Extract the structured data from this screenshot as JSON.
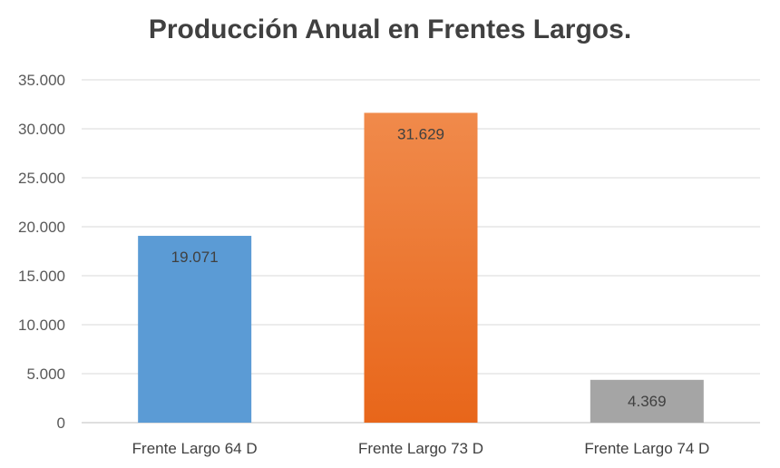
{
  "chart_data": {
    "type": "bar",
    "title": "Producción Anual en Frentes Largos.",
    "xlabel": "",
    "ylabel": "",
    "categories": [
      "Frente Largo 64 D",
      "Frente Largo 73 D",
      "Frente Largo 74 D"
    ],
    "values": [
      19071,
      31629,
      4369
    ],
    "data_labels": [
      "19.071",
      "31.629",
      "4.369"
    ],
    "ylim": [
      0,
      35000
    ],
    "yticks": [
      0,
      5000,
      10000,
      15000,
      20000,
      25000,
      30000,
      35000
    ],
    "ytick_labels": [
      "0",
      "5.000",
      "10.000",
      "15.000",
      "20.000",
      "25.000",
      "30.000",
      "35.000"
    ],
    "grid": true,
    "legend": "none",
    "colors": [
      {
        "top": "#5b9bd5",
        "bottom": "#5b9bd5"
      },
      {
        "top": "#f08a4b",
        "bottom": "#e8661a"
      },
      {
        "top": "#a5a5a5",
        "bottom": "#a5a5a5"
      }
    ]
  }
}
